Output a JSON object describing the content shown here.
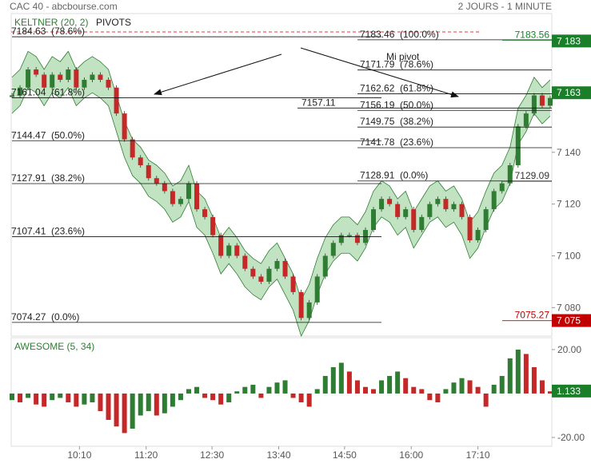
{
  "header": {
    "title": "CAC 40 - abcbourse.com",
    "period": "2 JOURS - 1 MINUTE"
  },
  "chart_data": [
    {
      "type": "candle",
      "indicator": "KELTNER (20, 2)",
      "overlay": "PIVOTS",
      "xlim": [
        0,
        67
      ],
      "xticks": [
        {
          "value": 8.4,
          "label": "10:10"
        },
        {
          "value": 16.7,
          "label": "11:20"
        },
        {
          "value": 24.9,
          "label": "12:30"
        },
        {
          "value": 33.2,
          "label": "13:40"
        },
        {
          "value": 41.4,
          "label": "14:50"
        },
        {
          "value": 49.7,
          "label": "16:00"
        },
        {
          "value": 58.0,
          "label": "17:10"
        }
      ],
      "ylim": [
        7069,
        7186.5
      ],
      "yticks": [
        {
          "value": 7140,
          "label": "7 140"
        },
        {
          "value": 7120,
          "label": "7 120"
        },
        {
          "value": 7100,
          "label": "7 100"
        },
        {
          "value": 7080,
          "label": "7 080"
        }
      ],
      "price_tags": [
        {
          "value": 7183,
          "label": "7 183",
          "color": "#1b7f2a"
        },
        {
          "value": 7163,
          "label": "7 163",
          "color": "#1b7f2a"
        },
        {
          "value": 7075,
          "label": "7 075",
          "color": "#c00000"
        }
      ],
      "colors": {
        "up": "#2e7d32",
        "down": "#c62828"
      },
      "values": [
        7162,
        7165,
        7172,
        7170,
        7165,
        7170,
        7168,
        7172,
        7165,
        7168,
        7170,
        7168,
        7165,
        7155,
        7145,
        7138,
        7135,
        7130,
        7128,
        7125,
        7120,
        7122,
        7128,
        7118,
        7115,
        7108,
        7100,
        7104,
        7100,
        7095,
        7092,
        7090,
        7095,
        7098,
        7092,
        7086,
        7076,
        7082,
        7092,
        7100,
        7105,
        7108,
        7108,
        7105,
        7110,
        7118,
        7122,
        7120,
        7115,
        7118,
        7110,
        7115,
        7120,
        7122,
        7118,
        7120,
        7115,
        7106,
        7110,
        7118,
        7125,
        7128,
        7135,
        7150,
        7155,
        7162,
        7158,
        7161
      ],
      "keltner": {
        "color": "#4caf50",
        "upper": [
          7169,
          7172,
          7179,
          7177,
          7172,
          7177,
          7175,
          7179,
          7172,
          7175,
          7177,
          7175,
          7172,
          7162,
          7152,
          7145,
          7142,
          7137,
          7135,
          7132,
          7127,
          7129,
          7135,
          7125,
          7122,
          7115,
          7107,
          7111,
          7107,
          7102,
          7099,
          7097,
          7102,
          7105,
          7099,
          7093,
          7083,
          7089,
          7099,
          7107,
          7112,
          7115,
          7115,
          7112,
          7117,
          7125,
          7129,
          7127,
          7122,
          7125,
          7117,
          7122,
          7127,
          7129,
          7125,
          7127,
          7122,
          7113,
          7117,
          7125,
          7132,
          7135,
          7142,
          7157,
          7162,
          7169,
          7165,
          7168
        ],
        "lower": [
          7155,
          7158,
          7165,
          7163,
          7158,
          7163,
          7161,
          7165,
          7158,
          7161,
          7163,
          7161,
          7158,
          7148,
          7138,
          7131,
          7128,
          7123,
          7121,
          7118,
          7113,
          7115,
          7121,
          7111,
          7108,
          7101,
          7093,
          7097,
          7093,
          7088,
          7085,
          7083,
          7088,
          7091,
          7085,
          7079,
          7069,
          7075,
          7085,
          7093,
          7098,
          7101,
          7101,
          7098,
          7103,
          7111,
          7115,
          7113,
          7108,
          7111,
          7103,
          7108,
          7113,
          7115,
          7111,
          7113,
          7108,
          7099,
          7103,
          7111,
          7118,
          7121,
          7128,
          7143,
          7148,
          7155,
          7151,
          7154
        ]
      },
      "fib_left": [
        {
          "price": 7184.63,
          "pct": "(78.6%)"
        },
        {
          "price": 7161.04,
          "pct": "(61.8%)"
        },
        {
          "price": 7144.47,
          "pct": "(50.0%)"
        },
        {
          "price": 7127.91,
          "pct": "(38.2%)"
        },
        {
          "price": 7107.41,
          "pct": "(23.6%)"
        },
        {
          "price": 7074.27,
          "pct": "(0.0%)"
        }
      ],
      "fib_right": [
        {
          "price": 7183.46,
          "pct": "(100.0%)"
        },
        {
          "price": 7171.79,
          "pct": "(78.6%)"
        },
        {
          "price": 7162.62,
          "pct": "(61.8%)"
        },
        {
          "price": 7156.19,
          "pct": "(50.0%)"
        },
        {
          "price": 7149.75,
          "pct": "(38.2%)"
        },
        {
          "price": 7141.78,
          "pct": "(23.6%)"
        },
        {
          "price": 7128.91,
          "pct": "(0.0%)"
        }
      ],
      "pivot": {
        "price": 7157.11,
        "label": "Mi pivot"
      },
      "levels_right": [
        {
          "price": 7183.56,
          "color": "#1b7f2a"
        },
        {
          "price": 7129.09,
          "color": "#333333"
        },
        {
          "price": 7075.27,
          "color": "#c00000"
        }
      ]
    },
    {
      "type": "bar",
      "title": "AWESOME (5, 34)",
      "xlim": [
        0,
        67
      ],
      "ylim": [
        -24,
        23.6
      ],
      "yticks": [
        {
          "value": 20,
          "label": "20.00"
        },
        {
          "value": -20,
          "label": "-20.00"
        }
      ],
      "last": 1.133,
      "tag_color": "#1b7f2a",
      "colors": {
        "up": "#2e7d32",
        "down": "#c62828"
      },
      "values": [
        -3,
        -4,
        -2,
        -5,
        -6,
        -3,
        -2,
        -4,
        -6,
        -5,
        -4,
        -8,
        -12,
        -15,
        -18,
        -16,
        -10,
        -8,
        -10,
        -9,
        -6,
        -3,
        2,
        3,
        -2,
        -3,
        -5,
        -4,
        1,
        3,
        4,
        -2,
        3,
        5,
        6,
        -2,
        -4,
        -6,
        2,
        8,
        12,
        14,
        10,
        6,
        3,
        2,
        6,
        8,
        10,
        7,
        3,
        2,
        -3,
        -4,
        2,
        5,
        7,
        6,
        3,
        -6,
        4,
        8,
        16,
        20,
        18,
        12,
        6,
        1
      ]
    }
  ]
}
